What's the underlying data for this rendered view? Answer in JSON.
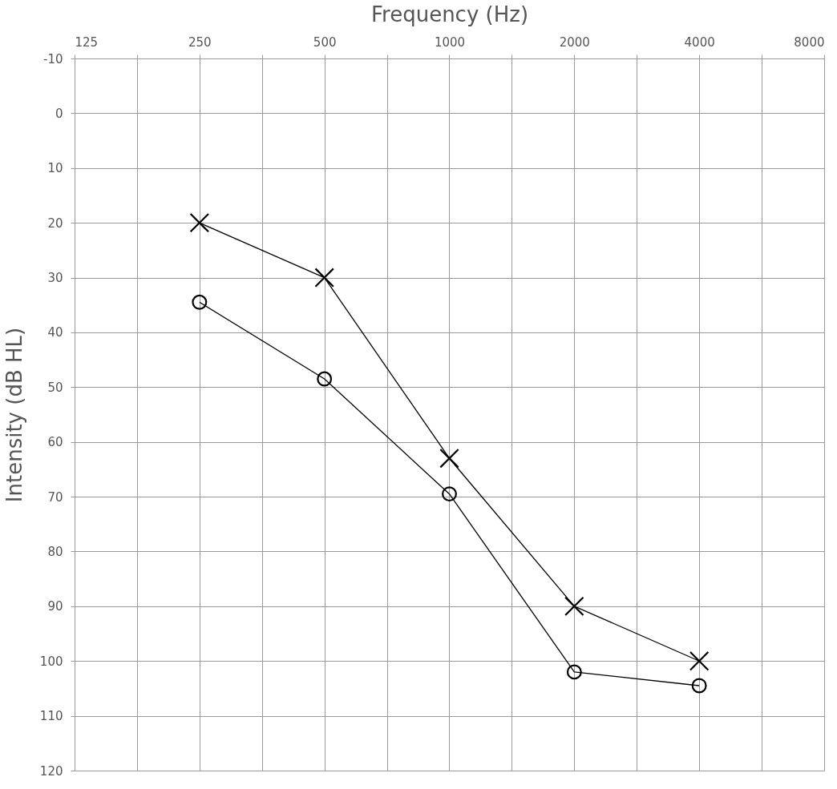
{
  "chart_data": {
    "type": "line",
    "xlabel": "Frequency (Hz)",
    "ylabel": "Intensity (dB HL)",
    "log": "x",
    "xlim": [
      125,
      8000
    ],
    "xticks": [
      125,
      {
        "value": 176.8,
        "label": null
      },
      250,
      {
        "value": 353.6,
        "label": null
      },
      500,
      {
        "value": 707.1,
        "label": null
      },
      1000,
      {
        "value": 1414.2,
        "label": null
      },
      2000,
      {
        "value": 2828.4,
        "label": null
      },
      4000,
      {
        "value": 5656.9,
        "label": null
      },
      8000
    ],
    "ylim": [
      120,
      -10
    ],
    "yticks": [
      -10,
      0,
      10,
      20,
      30,
      40,
      50,
      60,
      70,
      80,
      90,
      100,
      110,
      120
    ],
    "grid": true,
    "line_style": "solid",
    "series": [
      {
        "x": [
          250,
          500,
          1000,
          2000,
          4000
        ],
        "values": [
          20,
          30,
          63,
          90,
          100
        ],
        "color": "#000000",
        "marker": "cross"
      },
      {
        "x": [
          250,
          500,
          1000,
          2000,
          4000
        ],
        "values": [
          34.5,
          48.5,
          69.5,
          102,
          104.5
        ],
        "color": "#000000",
        "marker": "circle"
      }
    ]
  }
}
